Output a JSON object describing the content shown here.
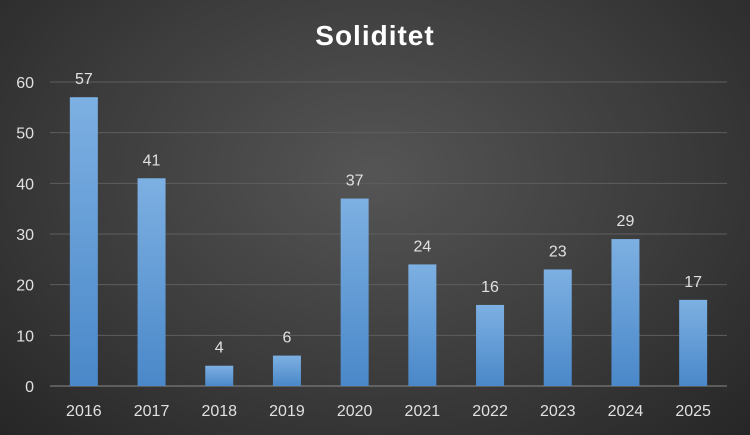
{
  "chart_data": {
    "type": "bar",
    "title": "Soliditet",
    "categories": [
      "2016",
      "2017",
      "2018",
      "2019",
      "2020",
      "2021",
      "2022",
      "2023",
      "2024",
      "2025"
    ],
    "values": [
      57,
      41,
      4,
      6,
      37,
      24,
      16,
      23,
      29,
      17
    ],
    "data_labels": [
      "57",
      "41",
      "4",
      "6",
      "37",
      "24",
      "16",
      "23",
      "29",
      "17"
    ],
    "xlabel": "",
    "ylabel": "",
    "ylim": [
      0,
      60
    ],
    "yticks": [
      "0",
      "10",
      "20",
      "30",
      "40",
      "50",
      "60"
    ],
    "grid": true,
    "legend": "none",
    "colors": {
      "bar": "#5b9bd5",
      "bar_light": "#7fb0e0",
      "grid": "#5e5e5e",
      "text": "#e0e0e0",
      "title": "#ffffff"
    }
  }
}
